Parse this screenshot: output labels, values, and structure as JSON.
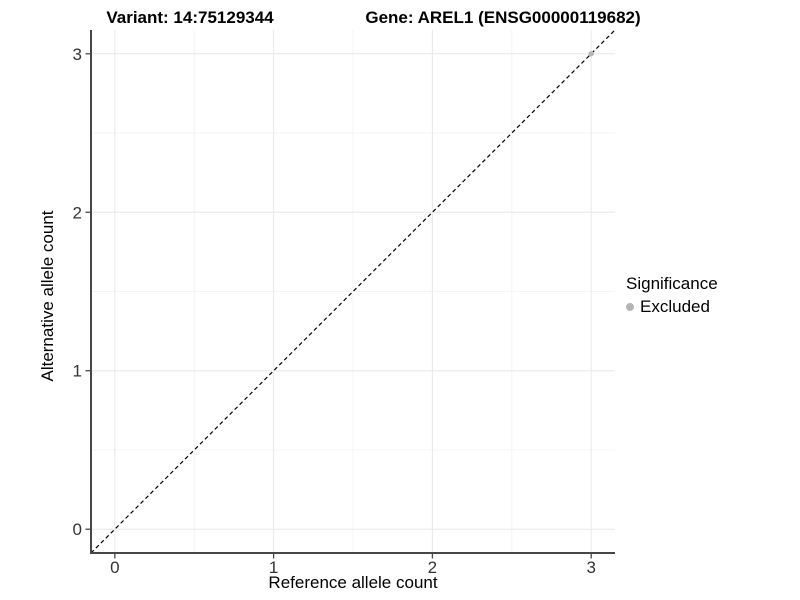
{
  "chart_data": {
    "type": "scatter",
    "titles": {
      "left": "Variant: 14:75129344",
      "right": "Gene: AREL1 (ENSG00000119682)"
    },
    "xlabel": "Reference allele count",
    "ylabel": "Alternative allele count",
    "xlim": [
      -0.15,
      3.15
    ],
    "ylim": [
      -0.15,
      3.15
    ],
    "xticks": [
      0,
      1,
      2,
      3
    ],
    "yticks": [
      0,
      1,
      2,
      3
    ],
    "xminor": [
      0.5,
      1.5,
      2.5
    ],
    "yminor": [
      0.5,
      1.5,
      2.5
    ],
    "grid": "major and minor, light gray on white panel",
    "reference_line": {
      "style": "dashed",
      "slope": 1,
      "intercept": 0,
      "color": "#000000"
    },
    "series": [
      {
        "name": "Excluded",
        "color": "#b5b5b5",
        "points": [
          [
            3,
            3
          ]
        ]
      }
    ],
    "legend": {
      "position": "right",
      "title": "Significance",
      "entries": [
        {
          "label": "Excluded",
          "color": "#b5b5b5"
        }
      ]
    },
    "style": {
      "background": "#ffffff",
      "major_grid": "#e8e8e8",
      "minor_grid": "#f4f4f4",
      "axis_line": "#474747",
      "tick_text": "#333333",
      "title_text": "#000000"
    }
  }
}
